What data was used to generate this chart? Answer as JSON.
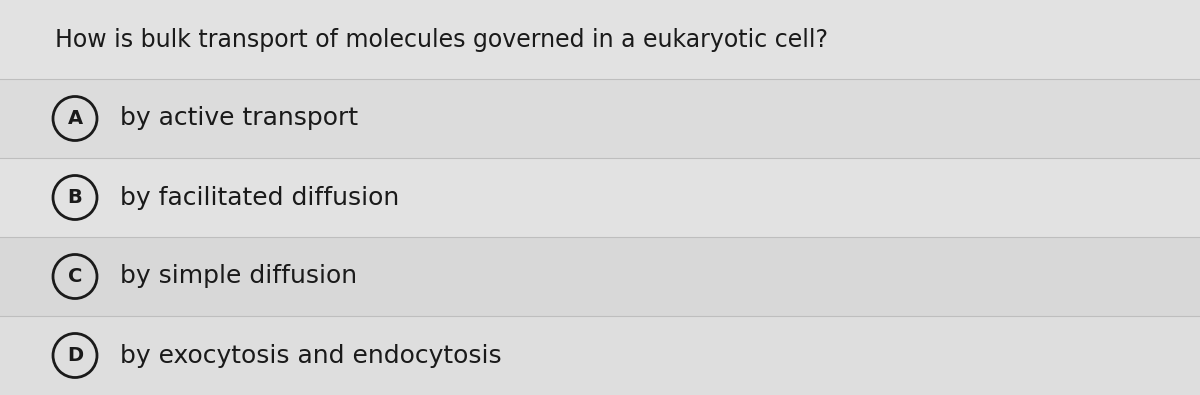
{
  "question": "How is bulk transport of molecules governed in a eukaryotic cell?",
  "options": [
    {
      "label": "A",
      "text": "by active transport"
    },
    {
      "label": "B",
      "text": "by facilitated diffusion"
    },
    {
      "label": "C",
      "text": "by simple diffusion"
    },
    {
      "label": "D",
      "text": "by exocytosis and endocytosis"
    }
  ],
  "bg_color": "#e0e0e0",
  "band_colors_alt": [
    "#e8e8e8",
    "#d8d8d8"
  ],
  "question_bg": "#e4e4e4",
  "text_color": "#1a1a1a",
  "circle_edge_color": "#1a1a1a",
  "question_fontsize": 17,
  "option_fontsize": 18,
  "label_fontsize": 14,
  "fig_width": 12.0,
  "fig_height": 3.95,
  "dpi": 100
}
